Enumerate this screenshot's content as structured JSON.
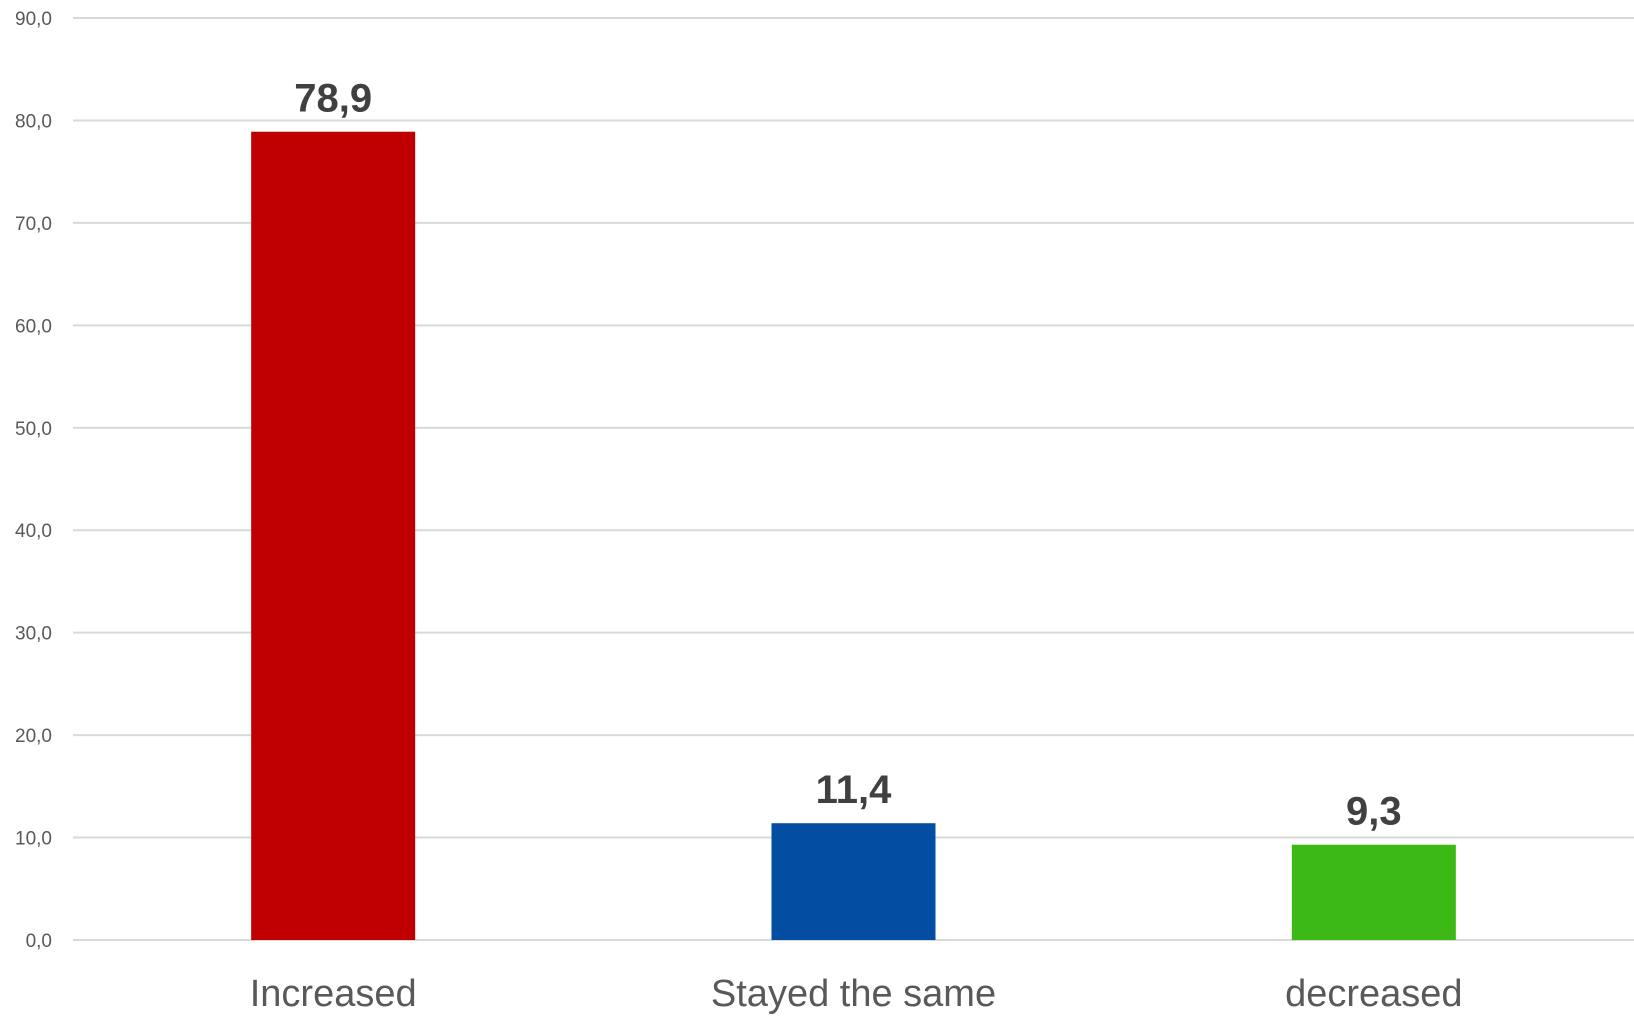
{
  "chart_data": {
    "type": "bar",
    "categories": [
      "Increased",
      "Stayed the same",
      "decreased"
    ],
    "values": [
      78.9,
      11.4,
      9.3
    ],
    "value_labels": [
      "78,9",
      "11,4",
      "9,3"
    ],
    "colors": [
      "#c00000",
      "#034ea2",
      "#3cb916"
    ],
    "title": "",
    "xlabel": "",
    "ylabel": "",
    "ylim": [
      0,
      90
    ],
    "ytick_values": [
      0,
      10,
      20,
      30,
      40,
      50,
      60,
      70,
      80,
      90
    ],
    "ytick_labels": [
      "0,0",
      "10,0",
      "20,0",
      "30,0",
      "40,0",
      "50,0",
      "60,0",
      "70,0",
      "80,0",
      "90,0"
    ],
    "grid": true,
    "legend": "none"
  }
}
